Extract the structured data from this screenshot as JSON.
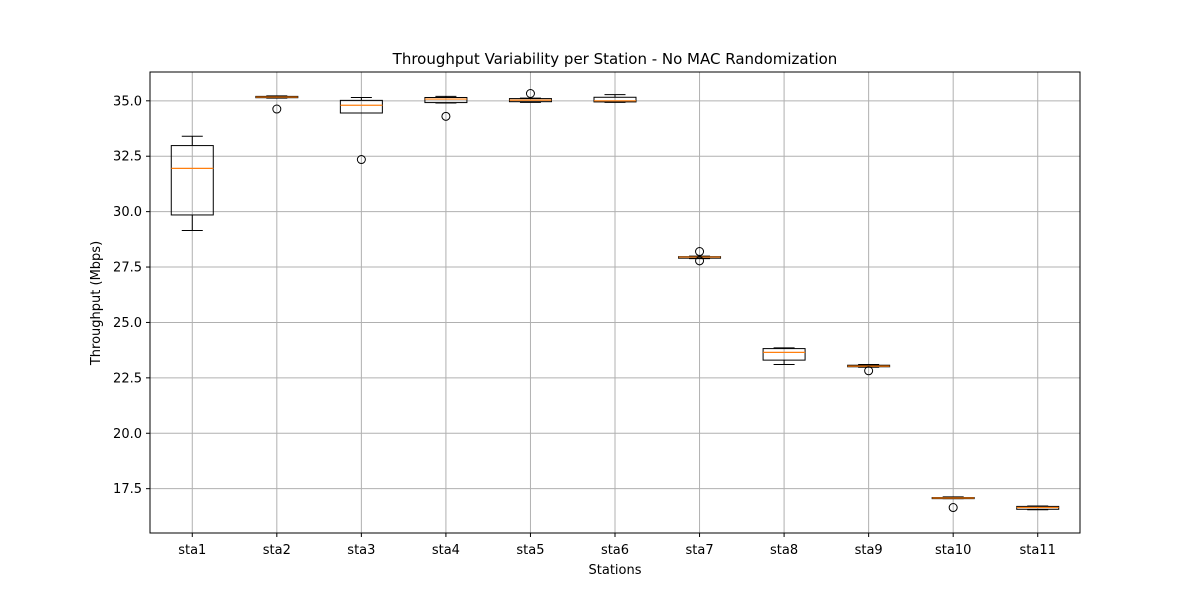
{
  "chart_data": {
    "type": "box",
    "title": "Throughput Variability per Station - No MAC Randomization",
    "xlabel": "Stations",
    "ylabel": "Throughput (Mbps)",
    "ylim": [
      15.5,
      36.3
    ],
    "yticks": [
      17.5,
      20.0,
      22.5,
      25.0,
      27.5,
      30.0,
      32.5,
      35.0
    ],
    "ytick_labels": [
      "17.5",
      "20.0",
      "22.5",
      "25.0",
      "27.5",
      "30.0",
      "32.5",
      "35.0"
    ],
    "grid": true,
    "categories": [
      "sta1",
      "sta2",
      "sta3",
      "sta4",
      "sta5",
      "sta6",
      "sta7",
      "sta8",
      "sta9",
      "sta10",
      "sta11"
    ],
    "boxes": [
      {
        "name": "sta1",
        "whisker_low": 29.15,
        "q1": 29.85,
        "median": 31.95,
        "q3": 32.98,
        "whisker_high": 33.4,
        "outliers": []
      },
      {
        "name": "sta2",
        "whisker_low": 35.12,
        "q1": 35.14,
        "median": 35.17,
        "q3": 35.2,
        "whisker_high": 35.22,
        "outliers": [
          34.63
        ]
      },
      {
        "name": "sta3",
        "whisker_low": 34.45,
        "q1": 34.45,
        "median": 34.8,
        "q3": 35.02,
        "whisker_high": 35.15,
        "outliers": [
          32.35
        ]
      },
      {
        "name": "sta4",
        "whisker_low": 34.9,
        "q1": 34.92,
        "median": 35.08,
        "q3": 35.15,
        "whisker_high": 35.2,
        "outliers": [
          34.3
        ]
      },
      {
        "name": "sta5",
        "whisker_low": 34.93,
        "q1": 34.96,
        "median": 35.03,
        "q3": 35.1,
        "whisker_high": 35.12,
        "outliers": [
          35.33
        ]
      },
      {
        "name": "sta6",
        "whisker_low": 34.93,
        "q1": 34.95,
        "median": 35.0,
        "q3": 35.16,
        "whisker_high": 35.28,
        "outliers": []
      },
      {
        "name": "sta7",
        "whisker_low": 27.88,
        "q1": 27.9,
        "median": 27.95,
        "q3": 27.97,
        "whisker_high": 27.99,
        "outliers": [
          28.2,
          27.78
        ]
      },
      {
        "name": "sta8",
        "whisker_low": 23.1,
        "q1": 23.3,
        "median": 23.65,
        "q3": 23.82,
        "whisker_high": 23.85,
        "outliers": []
      },
      {
        "name": "sta9",
        "whisker_low": 22.98,
        "q1": 23.0,
        "median": 23.03,
        "q3": 23.07,
        "whisker_high": 23.1,
        "outliers": [
          22.82
        ]
      },
      {
        "name": "sta10",
        "whisker_low": 17.05,
        "q1": 17.05,
        "median": 17.08,
        "q3": 17.1,
        "whisker_high": 17.13,
        "outliers": [
          16.65
        ]
      },
      {
        "name": "sta11",
        "whisker_low": 16.55,
        "q1": 16.57,
        "median": 16.65,
        "q3": 16.7,
        "whisker_high": 16.72,
        "outliers": []
      }
    ],
    "colors": {
      "box": "#000000",
      "median": "#ff7f0e",
      "grid": "#b0b0b0",
      "background": "#ffffff"
    }
  }
}
